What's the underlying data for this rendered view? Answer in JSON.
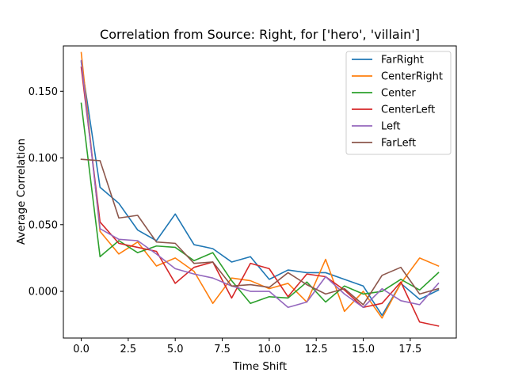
{
  "chart_data": {
    "type": "line",
    "title": "Correlation from Source: Right, for ['hero', 'villain']",
    "xlabel": "Time Shift",
    "ylabel": "Average Correlation",
    "xlim": [
      -0.95,
      19.95
    ],
    "ylim": [
      -0.035,
      0.184
    ],
    "xticks": [
      0.0,
      2.5,
      5.0,
      7.5,
      10.0,
      12.5,
      15.0,
      17.5
    ],
    "xtick_labels": [
      "0.0",
      "2.5",
      "5.0",
      "7.5",
      "10.0",
      "12.5",
      "15.0",
      "17.5"
    ],
    "yticks": [
      0.0,
      0.05,
      0.1,
      0.15
    ],
    "ytick_labels": [
      "0.000",
      "0.050",
      "0.100",
      "0.150"
    ],
    "grid": false,
    "legend_position": "top-right",
    "x": [
      0,
      1,
      2,
      3,
      4,
      5,
      6,
      7,
      8,
      9,
      10,
      11,
      12,
      13,
      14,
      15,
      16,
      17,
      18,
      19
    ],
    "series": [
      {
        "name": "FarRight",
        "color": "#1f77b4",
        "values": [
          0.172,
          0.078,
          0.066,
          0.046,
          0.038,
          0.058,
          0.035,
          0.032,
          0.022,
          0.026,
          0.009,
          0.016,
          0.014,
          0.014,
          0.009,
          0.004,
          -0.018,
          0.006,
          -0.006,
          0.001
        ]
      },
      {
        "name": "CenterRight",
        "color": "#ff7f0e",
        "values": [
          0.179,
          0.045,
          0.028,
          0.037,
          0.019,
          0.025,
          0.015,
          -0.009,
          0.01,
          0.008,
          0.002,
          0.006,
          -0.008,
          0.024,
          -0.015,
          0.0,
          -0.02,
          0.006,
          0.025,
          0.019
        ]
      },
      {
        "name": "Center",
        "color": "#2ca02c",
        "values": [
          0.141,
          0.026,
          0.038,
          0.029,
          0.034,
          0.033,
          0.023,
          0.029,
          0.008,
          -0.009,
          -0.004,
          -0.005,
          0.007,
          -0.008,
          0.004,
          -0.002,
          0.0,
          0.009,
          0.001,
          0.014
        ]
      },
      {
        "name": "CenterLeft",
        "color": "#d62728",
        "values": [
          0.168,
          0.052,
          0.036,
          0.033,
          0.03,
          0.006,
          0.018,
          0.022,
          -0.005,
          0.021,
          0.017,
          -0.004,
          0.013,
          0.011,
          0.001,
          -0.012,
          -0.009,
          0.007,
          -0.023,
          -0.026
        ]
      },
      {
        "name": "Left",
        "color": "#9467bd",
        "values": [
          0.173,
          0.047,
          0.039,
          0.038,
          0.028,
          0.017,
          0.013,
          0.01,
          0.004,
          0.0,
          0.0,
          -0.012,
          -0.008,
          0.011,
          -0.002,
          -0.012,
          0.002,
          -0.007,
          -0.01,
          0.006
        ]
      },
      {
        "name": "FarLeft",
        "color": "#8c564b",
        "values": [
          0.099,
          0.098,
          0.055,
          0.057,
          0.037,
          0.036,
          0.021,
          0.022,
          0.004,
          0.005,
          0.003,
          0.014,
          0.005,
          -0.002,
          0.002,
          -0.01,
          0.012,
          0.018,
          -0.002,
          0.002
        ]
      }
    ]
  }
}
